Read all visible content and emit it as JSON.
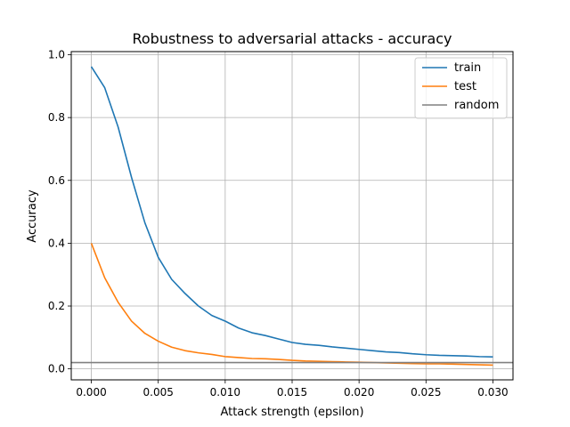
{
  "chart_data": {
    "type": "line",
    "title": "Robustness to adversarial attacks - accuracy",
    "xlabel": "Attack strength (epsilon)",
    "ylabel": "Accuracy",
    "xlim": [
      -0.0015,
      0.0315
    ],
    "ylim": [
      -0.035,
      1.01
    ],
    "grid": true,
    "legend_position": "top-right",
    "x_ticks": [
      0.0,
      0.005,
      0.01,
      0.015,
      0.02,
      0.025,
      0.03
    ],
    "x_tick_labels": [
      "0.000",
      "0.005",
      "0.010",
      "0.015",
      "0.020",
      "0.025",
      "0.030"
    ],
    "y_ticks": [
      0.0,
      0.2,
      0.4,
      0.6,
      0.8,
      1.0
    ],
    "y_tick_labels": [
      "0.0",
      "0.2",
      "0.4",
      "0.6",
      "0.8",
      "1.0"
    ],
    "x": [
      0.0,
      0.001,
      0.002,
      0.003,
      0.004,
      0.005,
      0.006,
      0.007,
      0.008,
      0.009,
      0.01,
      0.011,
      0.012,
      0.013,
      0.014,
      0.015,
      0.016,
      0.017,
      0.018,
      0.019,
      0.02,
      0.021,
      0.022,
      0.023,
      0.024,
      0.025,
      0.026,
      0.027,
      0.028,
      0.029,
      0.03
    ],
    "series": [
      {
        "name": "train",
        "color": "#1f77b4",
        "values": [
          0.962,
          0.895,
          0.77,
          0.61,
          0.465,
          0.355,
          0.285,
          0.24,
          0.2,
          0.17,
          0.152,
          0.13,
          0.115,
          0.106,
          0.095,
          0.084,
          0.078,
          0.075,
          0.07,
          0.066,
          0.062,
          0.058,
          0.054,
          0.052,
          0.048,
          0.045,
          0.043,
          0.042,
          0.041,
          0.039,
          0.038
        ]
      },
      {
        "name": "test",
        "color": "#ff7f0e",
        "values": [
          0.4,
          0.29,
          0.212,
          0.152,
          0.113,
          0.088,
          0.069,
          0.058,
          0.051,
          0.046,
          0.039,
          0.036,
          0.033,
          0.032,
          0.03,
          0.027,
          0.025,
          0.024,
          0.023,
          0.022,
          0.021,
          0.02,
          0.019,
          0.018,
          0.017,
          0.016,
          0.016,
          0.015,
          0.014,
          0.013,
          0.012
        ]
      }
    ],
    "hlines": [
      {
        "name": "random",
        "color": "#808080",
        "y": 0.02
      }
    ]
  }
}
